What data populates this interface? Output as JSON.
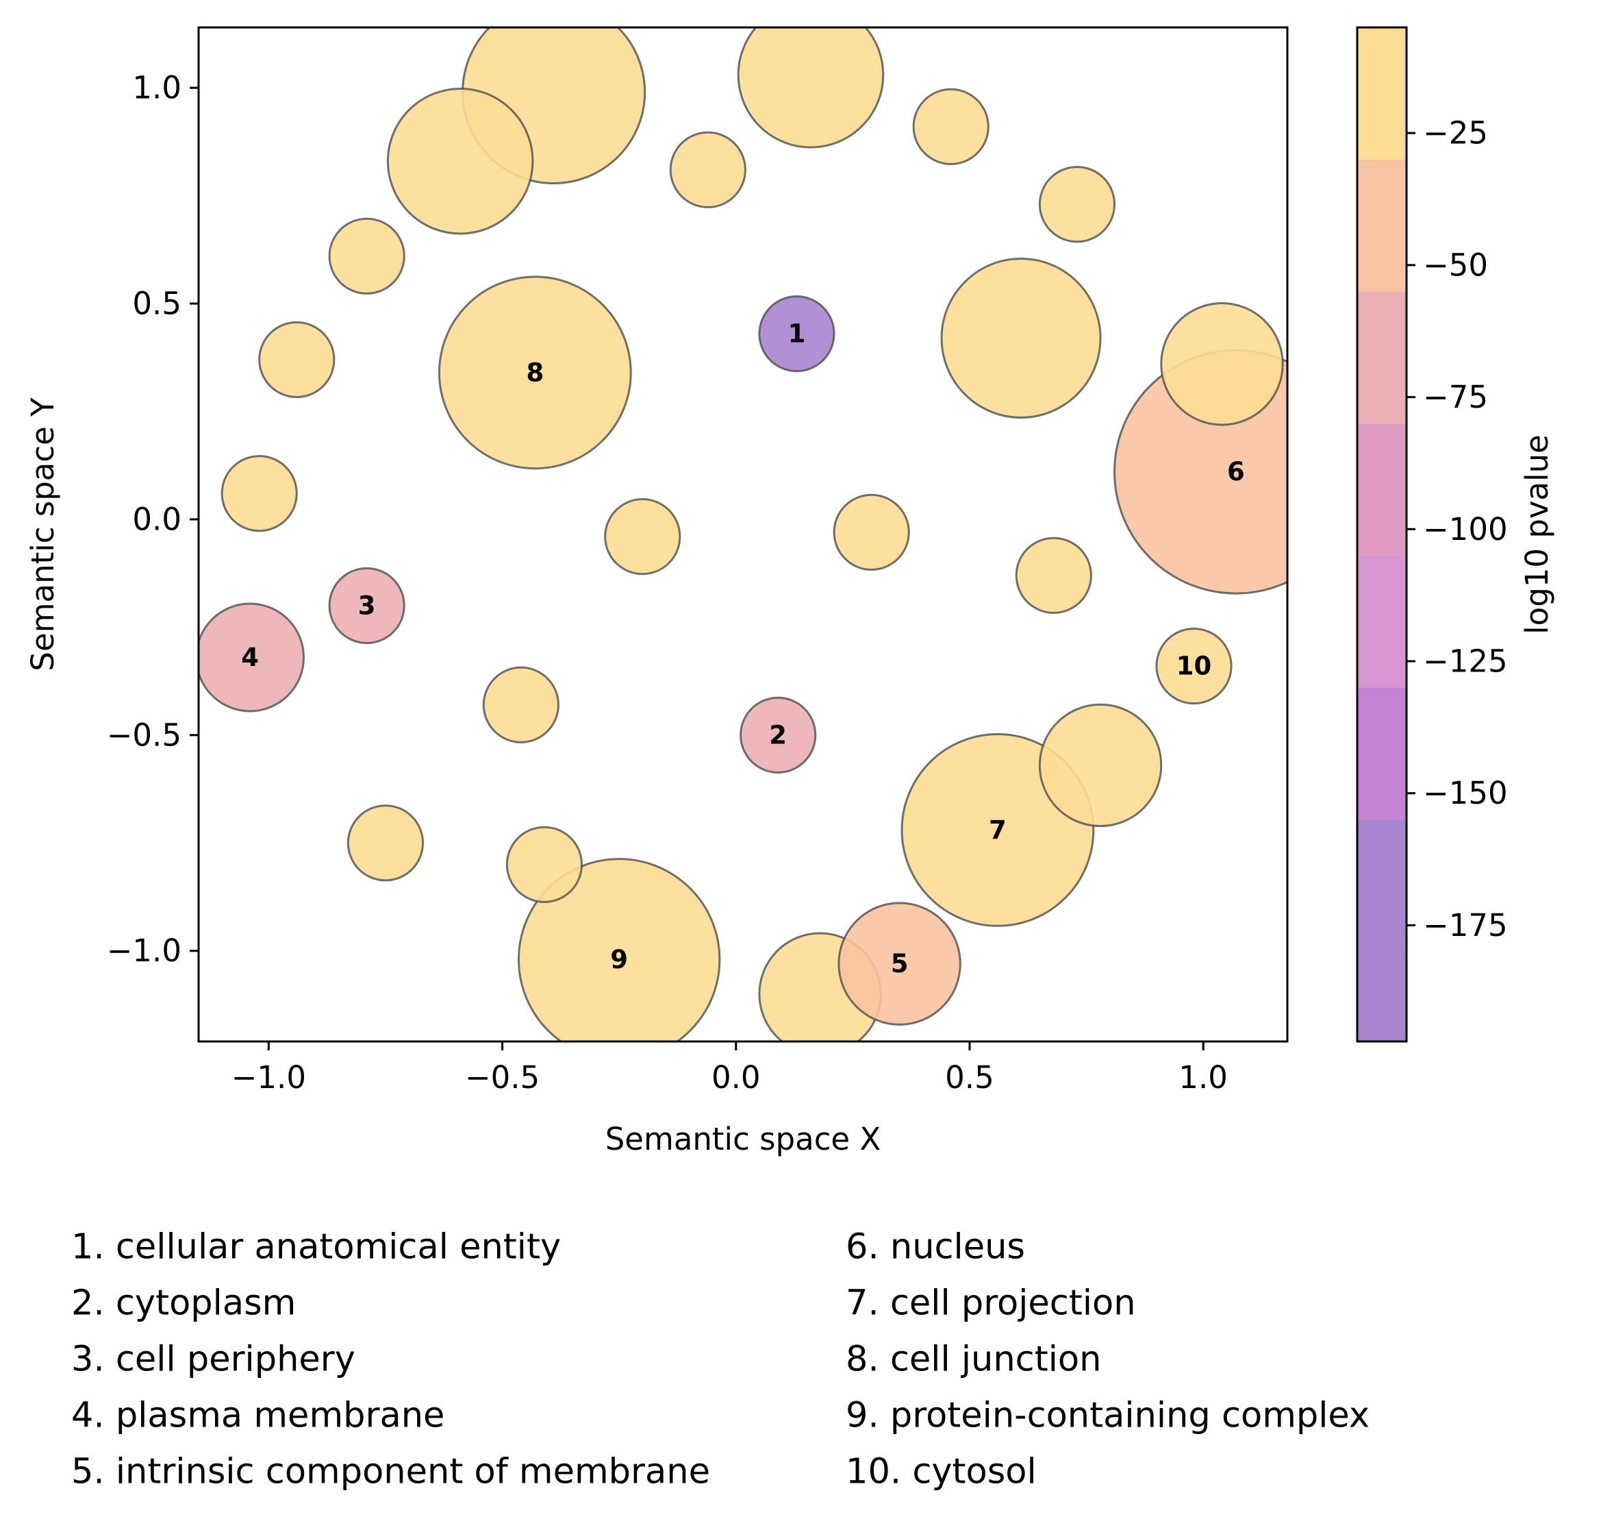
{
  "chart_data": {
    "type": "scatter",
    "xlabel": "Semantic space X",
    "ylabel": "Semantic space Y",
    "xlim": [
      -1.15,
      1.18
    ],
    "ylim": [
      -1.21,
      1.14
    ],
    "x_ticks": [
      -1.0,
      -0.5,
      0.0,
      0.5,
      1.0
    ],
    "x_tick_labels": [
      "−1.0",
      "−0.5",
      "0.0",
      "0.5",
      "1.0"
    ],
    "y_ticks": [
      1.0,
      0.5,
      0.0,
      -0.5,
      -1.0
    ],
    "y_tick_labels": [
      "1.0",
      "0.5",
      "0.0",
      "−0.5",
      "−1.0"
    ],
    "grid": false,
    "bubble_edge_color": "#4d4d4d",
    "colorbar": {
      "label": "log10 pvalue",
      "range": [
        -197,
        -5
      ],
      "ticks": [
        -25,
        -50,
        -75,
        -100,
        -125,
        -150,
        -175
      ],
      "tick_labels": [
        "−25",
        "−50",
        "−75",
        "−100",
        "−125",
        "−150",
        "−175"
      ],
      "bands": [
        {
          "from": -30,
          "to": -5,
          "color": "#fddc94"
        },
        {
          "from": -55,
          "to": -30,
          "color": "#f8c3a0"
        },
        {
          "from": -80,
          "to": -55,
          "color": "#ecafb3"
        },
        {
          "from": -105,
          "to": -80,
          "color": "#df9ac3"
        },
        {
          "from": -130,
          "to": -105,
          "color": "#d897d4"
        },
        {
          "from": -155,
          "to": -130,
          "color": "#c483d2"
        },
        {
          "from": -180,
          "to": -155,
          "color": "#a984cf"
        }
      ]
    },
    "points": [
      {
        "x": -0.39,
        "y": 0.99,
        "r": 0.195,
        "color": "#fddc94",
        "label": ""
      },
      {
        "x": 0.16,
        "y": 1.03,
        "r": 0.155,
        "color": "#fddc94",
        "label": ""
      },
      {
        "x": -0.59,
        "y": 0.83,
        "r": 0.155,
        "color": "#fddc94",
        "label": ""
      },
      {
        "x": -0.06,
        "y": 0.81,
        "r": 0.08,
        "color": "#fddc94",
        "label": ""
      },
      {
        "x": 0.46,
        "y": 0.91,
        "r": 0.08,
        "color": "#fddc94",
        "label": ""
      },
      {
        "x": 0.73,
        "y": 0.73,
        "r": 0.08,
        "color": "#fddc94",
        "label": ""
      },
      {
        "x": -0.79,
        "y": 0.61,
        "r": 0.08,
        "color": "#fddc94",
        "label": ""
      },
      {
        "x": -0.94,
        "y": 0.37,
        "r": 0.08,
        "color": "#fddc94",
        "label": ""
      },
      {
        "x": 0.13,
        "y": 0.43,
        "r": 0.08,
        "color": "#a984cf",
        "label": "1"
      },
      {
        "x": -0.43,
        "y": 0.34,
        "r": 0.205,
        "color": "#fddc94",
        "label": "8"
      },
      {
        "x": 0.61,
        "y": 0.42,
        "r": 0.17,
        "color": "#fddc94",
        "label": ""
      },
      {
        "x": 1.04,
        "y": 0.36,
        "r": 0.13,
        "color": "#fddc94",
        "label": ""
      },
      {
        "x": 1.07,
        "y": 0.11,
        "r": 0.26,
        "color": "#f8c3a0",
        "label": "6"
      },
      {
        "x": -1.02,
        "y": 0.06,
        "r": 0.08,
        "color": "#fddc94",
        "label": ""
      },
      {
        "x": -0.2,
        "y": -0.04,
        "r": 0.08,
        "color": "#fddc94",
        "label": ""
      },
      {
        "x": 0.29,
        "y": -0.03,
        "r": 0.08,
        "color": "#fddc94",
        "label": ""
      },
      {
        "x": 0.68,
        "y": -0.13,
        "r": 0.08,
        "color": "#fddc94",
        "label": ""
      },
      {
        "x": -0.79,
        "y": -0.2,
        "r": 0.08,
        "color": "#ecafb3",
        "label": "3"
      },
      {
        "x": -1.04,
        "y": -0.32,
        "r": 0.115,
        "color": "#ecafb3",
        "label": "4"
      },
      {
        "x": 0.98,
        "y": -0.34,
        "r": 0.08,
        "color": "#fddc94",
        "label": "10"
      },
      {
        "x": -0.46,
        "y": -0.43,
        "r": 0.08,
        "color": "#fddc94",
        "label": ""
      },
      {
        "x": 0.09,
        "y": -0.5,
        "r": 0.08,
        "color": "#ecafb3",
        "label": "2"
      },
      {
        "x": 0.78,
        "y": -0.57,
        "r": 0.13,
        "color": "#fddc94",
        "label": ""
      },
      {
        "x": 0.56,
        "y": -0.72,
        "r": 0.205,
        "color": "#fddc94",
        "label": "7"
      },
      {
        "x": -0.75,
        "y": -0.75,
        "r": 0.08,
        "color": "#fddc94",
        "label": ""
      },
      {
        "x": -0.41,
        "y": -0.8,
        "r": 0.08,
        "color": "#fddc94",
        "label": ""
      },
      {
        "x": -0.25,
        "y": -1.02,
        "r": 0.215,
        "color": "#fddc94",
        "label": "9"
      },
      {
        "x": 0.18,
        "y": -1.1,
        "r": 0.13,
        "color": "#fddc94",
        "label": ""
      },
      {
        "x": 0.35,
        "y": -1.03,
        "r": 0.13,
        "color": "#f8c3a0",
        "label": "5"
      }
    ],
    "legend_items": [
      "1. cellular anatomical entity",
      "2. cytoplasm",
      "3. cell periphery",
      "4. plasma membrane",
      "5. intrinsic component of membrane",
      "6. nucleus",
      "7. cell projection",
      "8. cell junction",
      "9. protein-containing complex",
      "10. cytosol"
    ]
  }
}
